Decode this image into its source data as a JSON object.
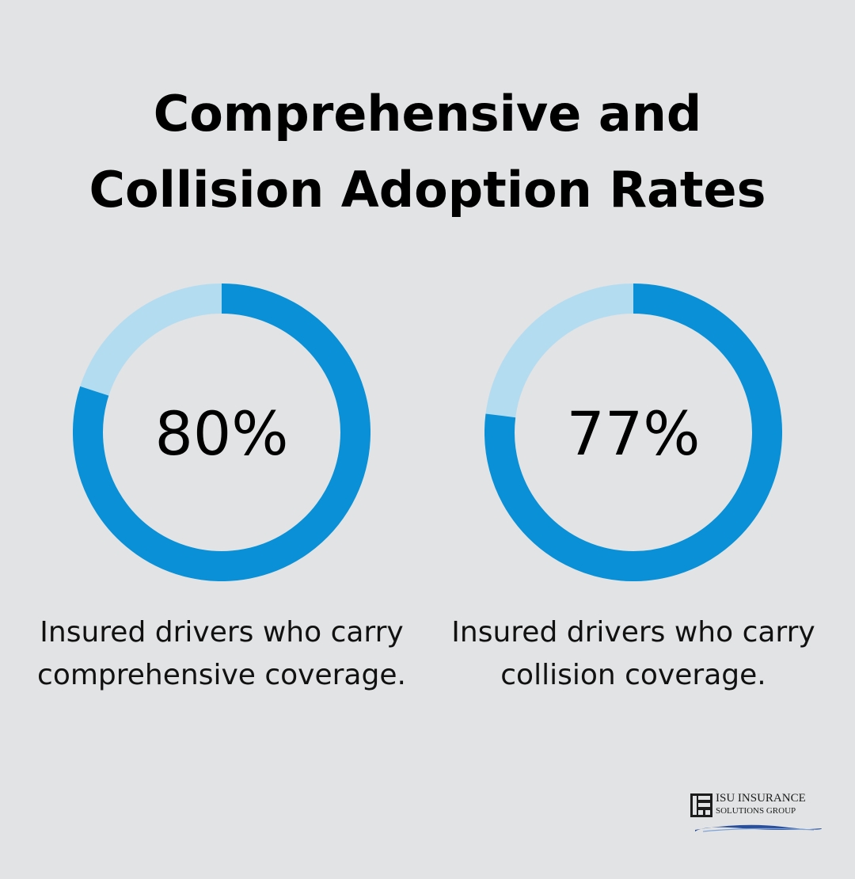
{
  "title": {
    "line1": "Comprehensive and",
    "line2": "Collision Adoption Rates"
  },
  "colors": {
    "background": "#e1e3e4",
    "filled": "#0990d6",
    "remaining": "#b4dcf1",
    "text": "#000000"
  },
  "chart_data": [
    {
      "type": "pie",
      "variant": "donut",
      "value": 80,
      "label": "80%",
      "caption": [
        "Insured drivers who carry",
        "comprehensive coverage."
      ]
    },
    {
      "type": "pie",
      "variant": "donut",
      "value": 77,
      "label": "77%",
      "caption": [
        "Insured drivers who carry",
        "collision coverage."
      ]
    }
  ],
  "logo": {
    "line1": "ISU INSURANCE",
    "line2": "SOLUTIONS GROUP",
    "mark": "ISU"
  }
}
